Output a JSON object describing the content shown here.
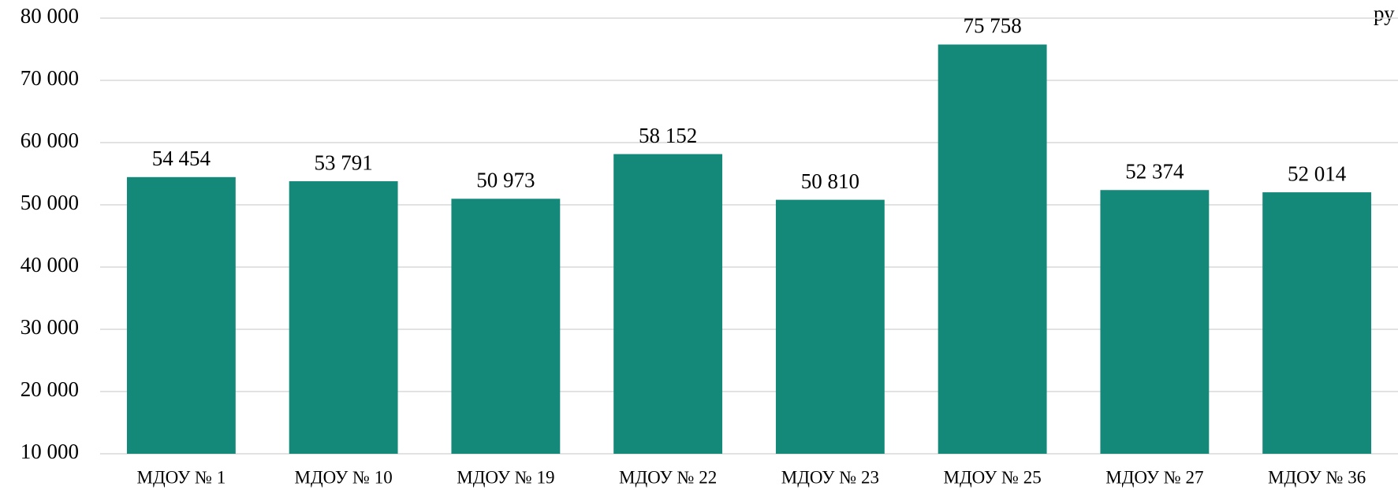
{
  "chart_data": {
    "type": "bar",
    "unit_label": "ру",
    "categories": [
      "МДОУ № 1",
      "МДОУ № 10",
      "МДОУ № 19",
      "МДОУ № 22",
      "МДОУ № 23",
      "МДОУ № 25",
      "МДОУ № 27",
      "МДОУ № 36"
    ],
    "values": [
      54454,
      53791,
      50973,
      58152,
      50810,
      75758,
      52374,
      52014
    ],
    "value_labels": [
      "54 454",
      "53 791",
      "50 973",
      "58 152",
      "50 810",
      "75 758",
      "52 374",
      "52 014"
    ],
    "color": "#14897a",
    "ylim": [
      10000,
      80000
    ],
    "yticks": [
      {
        "value": 10000,
        "label": "10 000"
      },
      {
        "value": 20000,
        "label": "20 000"
      },
      {
        "value": 30000,
        "label": "30 000"
      },
      {
        "value": 40000,
        "label": "40 000"
      },
      {
        "value": 50000,
        "label": "50 000"
      },
      {
        "value": 60000,
        "label": "60 000"
      },
      {
        "value": 70000,
        "label": "70 000"
      },
      {
        "value": 80000,
        "label": "80 000"
      }
    ],
    "grid": true
  }
}
